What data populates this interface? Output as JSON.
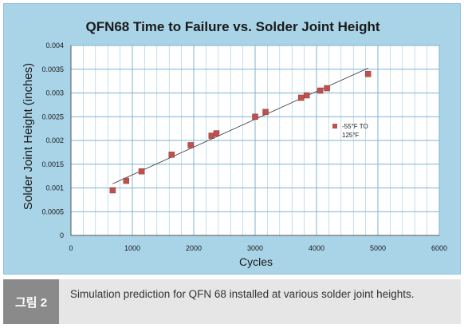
{
  "chart_data": {
    "type": "scatter",
    "title": "QFN68 Time to Failure vs. Solder Joint Height",
    "xlabel": "Cycles",
    "ylabel": "Solder Joint Height (inches)",
    "xlim": [
      0,
      6000
    ],
    "ylim": [
      0,
      0.004
    ],
    "x_ticks": [
      "0",
      "1000",
      "2000",
      "3000",
      "4000",
      "5000",
      "6000"
    ],
    "y_ticks": [
      "0",
      "0.0005",
      "0.001",
      "0.0015",
      "0.002",
      "0.0025",
      "0.003",
      "0.0035",
      "0.004"
    ],
    "grid": true,
    "legend_position": "right",
    "trendline": true,
    "series": [
      {
        "name": "-55°F TO 125°F",
        "color": "#c0504d",
        "marker": "square",
        "x": [
          680,
          900,
          1150,
          1640,
          1950,
          2290,
          2370,
          3000,
          3170,
          3750,
          3840,
          4060,
          4170,
          4840
        ],
        "y": [
          0.00095,
          0.00115,
          0.00135,
          0.0017,
          0.0019,
          0.0021,
          0.00215,
          0.0025,
          0.0026,
          0.0029,
          0.00295,
          0.00305,
          0.0031,
          0.0034
        ]
      }
    ]
  },
  "caption": {
    "label": "그림 2",
    "text": "Simulation prediction for QFN 68 installed at various solder joint heights."
  },
  "colors": {
    "background": "#a9d4e8",
    "plot_area": "#ffffff",
    "grid": "#9ec9df",
    "marker": "#c0504d"
  }
}
